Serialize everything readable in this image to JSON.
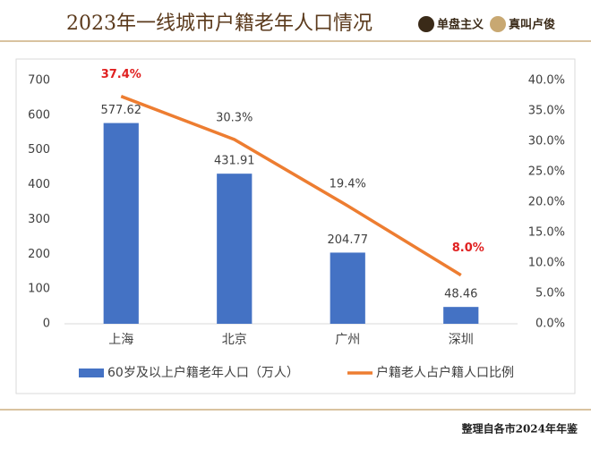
{
  "header": {
    "title": "2023年一线城市户籍老年人口情况",
    "logos": [
      "单盘主义",
      "真叫卢俊"
    ]
  },
  "footer": "整理自各市2024年年鉴",
  "chart_data": {
    "type": "bar_line",
    "categories": [
      "上海",
      "北京",
      "广州",
      "深圳"
    ],
    "series": [
      {
        "name": "60岁及以上户籍老年人口（万人）",
        "type": "bar",
        "color": "#4472c4",
        "values": [
          577.62,
          431.91,
          204.77,
          48.46
        ]
      },
      {
        "name": "户籍老人占户籍人口比例",
        "type": "line",
        "axis": "y2",
        "color": "#ed7d31",
        "values": [
          37.4,
          30.3,
          19.4,
          8.0
        ],
        "value_labels": [
          "37.4%",
          "30.3%",
          "19.4%",
          "8.0%"
        ],
        "value_label_colors": [
          "#e02020",
          "#404040",
          "#404040",
          "#e02020"
        ]
      }
    ],
    "ylim": [
      0,
      700
    ],
    "yticks": [
      0,
      100,
      200,
      300,
      400,
      500,
      600,
      700
    ],
    "y2lim": [
      0,
      40
    ],
    "y2ticks": [
      {
        "value": 0,
        "label": "0.0%"
      },
      {
        "value": 5,
        "label": "5.0%"
      },
      {
        "value": 10,
        "label": "10.0%"
      },
      {
        "value": 15,
        "label": "15.0%"
      },
      {
        "value": 20,
        "label": "20.0%"
      },
      {
        "value": 25,
        "label": "25.0%"
      },
      {
        "value": 30,
        "label": "30.0%"
      },
      {
        "value": 35,
        "label": "35.0%"
      },
      {
        "value": 40,
        "label": "40.0%"
      }
    ],
    "grid": false,
    "legend": "bottom"
  }
}
